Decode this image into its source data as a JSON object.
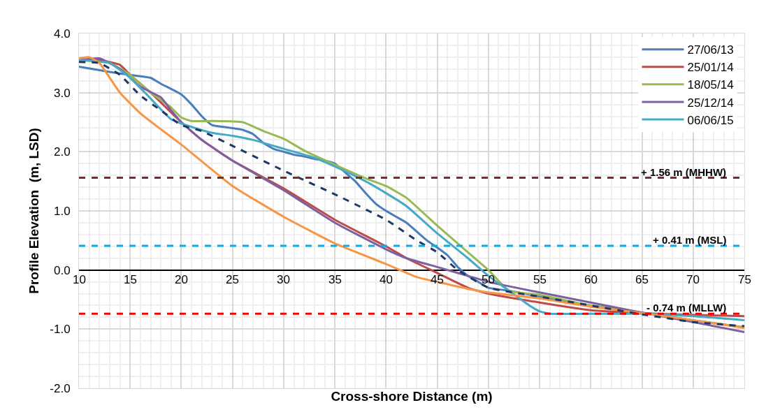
{
  "chart_data": {
    "type": "line",
    "xlabel": "Cross-shore Distance (m)",
    "ylabel": "Profile Elevation  (m, LSD)",
    "xlim": [
      10,
      75
    ],
    "xticks": [
      10,
      15,
      20,
      25,
      30,
      35,
      40,
      45,
      50,
      55,
      60,
      65,
      70,
      75
    ],
    "ylim": [
      -2,
      4
    ],
    "yticks": [
      {
        "value": 4,
        "label": "4.0"
      },
      {
        "value": 3,
        "label": "3.0"
      },
      {
        "value": 2,
        "label": "2.0"
      },
      {
        "value": 1,
        "label": "1.0"
      },
      {
        "value": 0,
        "label": "0.0"
      },
      {
        "value": -1,
        "label": "-1.0"
      },
      {
        "value": -2,
        "label": "-2.0"
      }
    ],
    "grid": true,
    "legend": "top right",
    "line_style": "solid",
    "marker": "none",
    "series": [
      {
        "name": "27/06/13",
        "color": "#4a7ebb",
        "x": [
          10,
          13,
          15,
          17,
          18,
          20,
          21,
          22,
          23,
          25,
          26,
          27,
          28,
          29,
          30,
          31,
          32,
          33,
          34,
          35,
          36,
          37,
          38,
          39,
          40,
          41,
          42,
          43,
          44,
          45,
          46,
          47,
          48,
          49,
          50,
          52,
          55,
          60,
          65,
          70,
          75
        ],
        "values": [
          3.44,
          3.35,
          3.3,
          3.25,
          3.15,
          2.97,
          2.8,
          2.6,
          2.45,
          2.4,
          2.37,
          2.3,
          2.15,
          2.05,
          2.0,
          1.95,
          1.92,
          1.88,
          1.85,
          1.8,
          1.65,
          1.5,
          1.3,
          1.12,
          1.0,
          0.9,
          0.8,
          0.65,
          0.5,
          0.38,
          0.25,
          0.05,
          -0.1,
          -0.2,
          -0.3,
          -0.35,
          -0.45,
          -0.6,
          -0.72,
          -0.85,
          -0.97
        ]
      },
      {
        "name": "25/01/14",
        "color": "#be4b48",
        "x": [
          10,
          12,
          14,
          15,
          17,
          20,
          22,
          25,
          30,
          35,
          40,
          42,
          45,
          48,
          50,
          55,
          60,
          65,
          70,
          75
        ],
        "values": [
          3.55,
          3.55,
          3.47,
          3.3,
          3.0,
          2.5,
          2.2,
          1.85,
          1.38,
          0.85,
          0.4,
          0.2,
          -0.05,
          -0.3,
          -0.4,
          -0.55,
          -0.68,
          -0.73,
          -0.76,
          -0.78
        ]
      },
      {
        "name": "18/05/14",
        "color": "#98b954",
        "x": [
          10,
          13,
          15,
          17,
          19,
          20,
          21,
          23,
          26,
          28,
          30,
          32,
          35,
          38,
          40,
          42,
          45,
          48,
          50,
          52,
          55,
          60,
          65,
          70,
          75
        ],
        "values": [
          3.55,
          3.5,
          3.3,
          3.0,
          2.75,
          2.58,
          2.52,
          2.52,
          2.5,
          2.35,
          2.22,
          2.02,
          1.78,
          1.55,
          1.42,
          1.22,
          0.75,
          0.3,
          0.0,
          -0.35,
          -0.42,
          -0.6,
          -0.72,
          -0.85,
          -0.97
        ]
      },
      {
        "name": "25/12/14",
        "color": "#7d60a0",
        "x": [
          10,
          12,
          14,
          16,
          18,
          19,
          20,
          22,
          25,
          30,
          35,
          40,
          42,
          45,
          48,
          50,
          55,
          60,
          65,
          70,
          75
        ],
        "values": [
          3.55,
          3.58,
          3.4,
          3.1,
          2.92,
          2.7,
          2.5,
          2.2,
          1.85,
          1.35,
          0.8,
          0.35,
          0.2,
          0.05,
          -0.1,
          -0.2,
          -0.38,
          -0.55,
          -0.72,
          -0.88,
          -1.05
        ]
      },
      {
        "name": "06/06/15",
        "color": "#46aac5",
        "x": [
          10,
          13,
          15,
          17,
          19,
          21,
          23,
          25,
          27,
          30,
          33,
          35,
          38,
          40,
          42,
          45,
          48,
          50,
          52,
          54,
          55,
          56,
          60,
          65,
          70,
          75
        ],
        "values": [
          3.55,
          3.5,
          3.25,
          2.9,
          2.55,
          2.42,
          2.32,
          2.27,
          2.2,
          2.05,
          1.9,
          1.75,
          1.5,
          1.3,
          1.08,
          0.62,
          0.2,
          -0.1,
          -0.35,
          -0.6,
          -0.7,
          -0.74,
          -0.74,
          -0.74,
          -0.78,
          -0.85
        ]
      },
      {
        "color": "#f79646",
        "x": [
          10,
          11,
          12,
          14,
          16,
          18,
          20,
          25,
          30,
          35,
          40,
          43,
          45,
          48,
          50,
          55,
          60,
          65,
          70,
          75
        ],
        "values": [
          3.58,
          3.6,
          3.5,
          3.0,
          2.65,
          2.38,
          2.12,
          1.42,
          0.9,
          0.45,
          0.1,
          -0.12,
          -0.2,
          -0.32,
          -0.38,
          -0.48,
          -0.62,
          -0.73,
          -0.85,
          -0.98
        ]
      },
      {
        "color": "#1f3864",
        "line_style": "dashed",
        "x": [
          10,
          12,
          14,
          16,
          18,
          20,
          22,
          25,
          30,
          35,
          40,
          43,
          45,
          47,
          50,
          55,
          60,
          65,
          70,
          75
        ],
        "values": [
          3.52,
          3.5,
          3.3,
          2.95,
          2.7,
          2.45,
          2.35,
          2.1,
          1.68,
          1.28,
          0.85,
          0.5,
          0.3,
          0.0,
          -0.3,
          -0.45,
          -0.6,
          -0.75,
          -0.88,
          -0.95
        ]
      }
    ],
    "ref_lines": [
      {
        "axis": "y",
        "value": 1.56,
        "label": "+ 1.56 m (MHHW)",
        "color": "#7b2c26",
        "line_style": "dashed"
      },
      {
        "axis": "y",
        "value": 0.41,
        "label": "+ 0.41 m (MSL)",
        "color": "#00b0f0",
        "line_style": "dashed"
      },
      {
        "axis": "y",
        "value": -0.74,
        "label": "- 0.74 m (MLLW)",
        "color": "#ff0000",
        "line_style": "dashed"
      }
    ]
  }
}
